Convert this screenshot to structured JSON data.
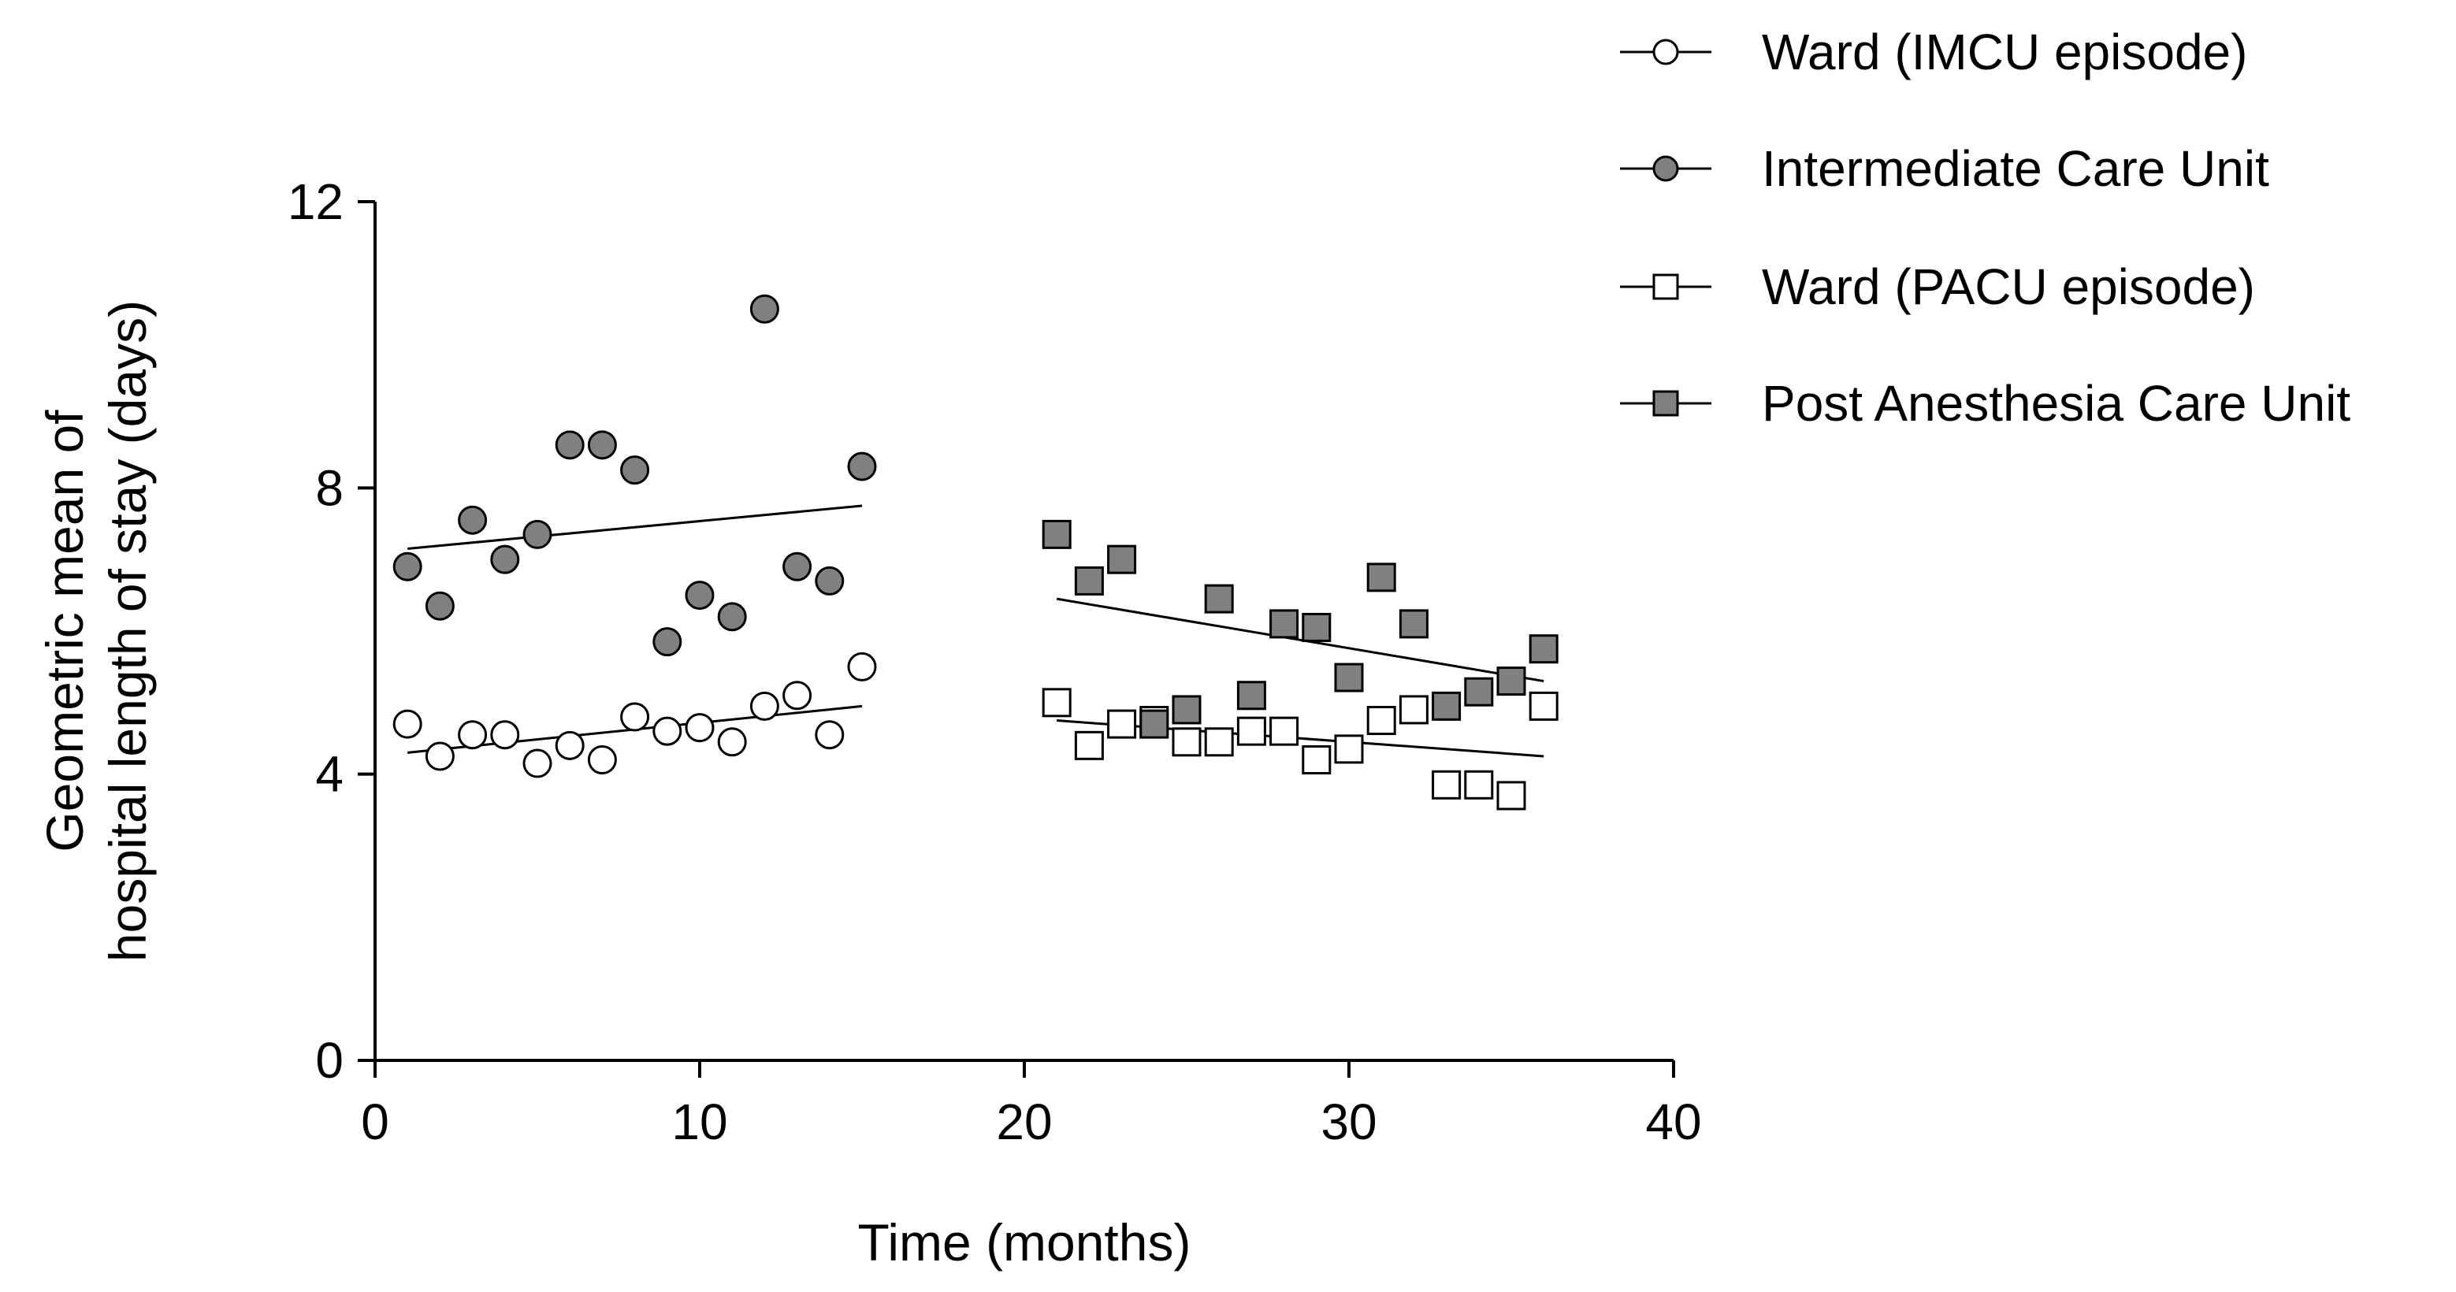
{
  "chart_data": {
    "type": "scatter",
    "xlabel": "Time (months)",
    "ylabel_lines": [
      "Geometric mean of",
      "hospital length of stay (days)"
    ],
    "xlim": [
      0,
      40
    ],
    "ylim": [
      0,
      12
    ],
    "xticks": [
      0,
      10,
      20,
      30,
      40
    ],
    "yticks": [
      0,
      4,
      8,
      12
    ],
    "xtick_labels": [
      "0",
      "10",
      "20",
      "30",
      "40"
    ],
    "ytick_labels": [
      "0",
      "4",
      "8",
      "12"
    ],
    "grid": false,
    "legend_position": "top-right",
    "series": [
      {
        "name": "Ward (IMCU episode)",
        "marker": "circle",
        "fill": "#ffffff",
        "x": [
          1,
          2,
          3,
          4,
          5,
          6,
          7,
          8,
          9,
          10,
          11,
          12,
          13,
          14,
          15
        ],
        "y": [
          4.7,
          4.25,
          4.55,
          4.55,
          4.15,
          4.4,
          4.2,
          4.8,
          4.6,
          4.65,
          4.45,
          4.95,
          5.1,
          4.55,
          5.5
        ],
        "trend": [
          [
            1,
            4.3
          ],
          [
            15,
            4.95
          ]
        ]
      },
      {
        "name": "Intermediate Care Unit",
        "marker": "circle",
        "fill": "#808080",
        "x": [
          1,
          2,
          3,
          4,
          5,
          6,
          7,
          8,
          9,
          10,
          11,
          12,
          13,
          14,
          15
        ],
        "y": [
          6.9,
          6.35,
          7.55,
          7.0,
          7.35,
          8.6,
          8.6,
          8.25,
          5.85,
          6.5,
          6.2,
          10.5,
          6.9,
          6.7,
          8.3
        ],
        "trend": [
          [
            1,
            7.15
          ],
          [
            15,
            7.75
          ]
        ]
      },
      {
        "name": "Ward (PACU episode)",
        "marker": "square",
        "fill": "#ffffff",
        "x": [
          21,
          22,
          23,
          24,
          25,
          26,
          27,
          28,
          29,
          30,
          31,
          32,
          33,
          34,
          35,
          36
        ],
        "y": [
          5.0,
          4.4,
          4.7,
          4.75,
          4.45,
          4.45,
          4.6,
          4.6,
          4.2,
          4.35,
          4.75,
          4.9,
          3.85,
          3.85,
          3.7,
          4.95
        ],
        "trend": [
          [
            21,
            4.75
          ],
          [
            36,
            4.25
          ]
        ]
      },
      {
        "name": "Post Anesthesia Care Unit",
        "marker": "square",
        "fill": "#808080",
        "x": [
          21,
          22,
          23,
          24,
          25,
          26,
          27,
          28,
          29,
          30,
          31,
          32,
          33,
          34,
          35,
          36
        ],
        "y": [
          7.35,
          6.7,
          7.0,
          4.7,
          4.9,
          6.45,
          5.1,
          6.1,
          6.05,
          5.35,
          6.75,
          6.1,
          4.95,
          5.15,
          5.3,
          5.75
        ],
        "trend": [
          [
            21,
            6.45
          ],
          [
            36,
            5.3
          ]
        ]
      }
    ]
  }
}
